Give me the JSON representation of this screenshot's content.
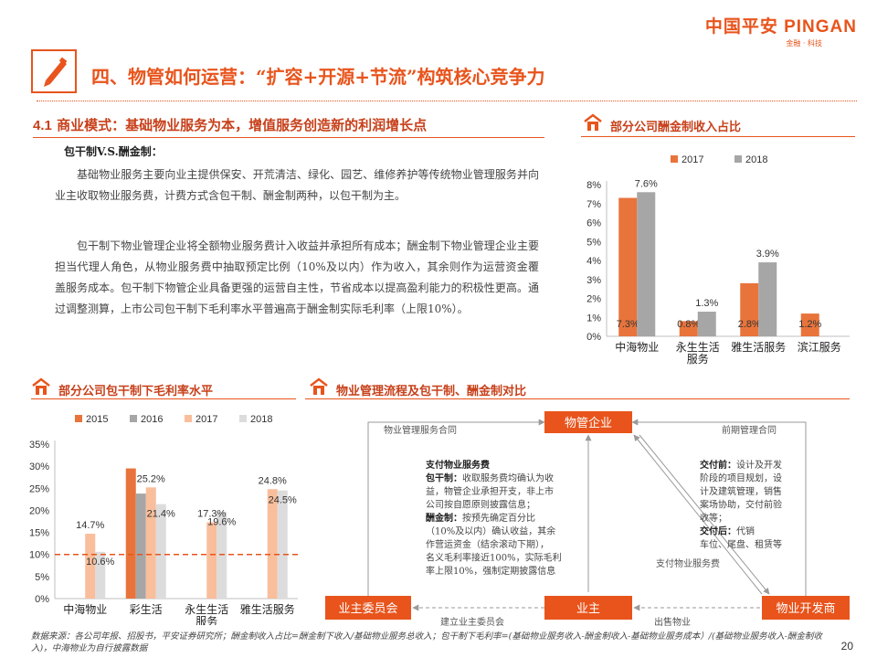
{
  "brand": {
    "name": "中国平安 PINGAN",
    "tagline": "金融 · 科技"
  },
  "page_title": "四、物管如何运营：“扩容+开源+节流”构筑核心竞争力",
  "section": {
    "number": "4.1",
    "title": "商业模式：基础物业服务为本，增值服务创造新的利润增长点"
  },
  "subheading": "包干制V.S.酬金制：",
  "paragraphs": [
    "基础物业服务主要向业主提供保安、开荒清洁、绿化、园艺、维修养护等传统物业管理服务并向业主收取物业服务费，计费方式含包干制、酬金制两种，以包干制为主。",
    "包干制下物业管理企业将全额物业服务费计入收益并承担所有成本；酬金制下物业管理企业主要担当代理人角色，从物业服务费中抽取预定比例（10%及以内）作为收入，其余则作为运营资金覆盖服务成本。包干制下物管企业具备更强的运营自主性，节省成本以提高盈利能力的积极性更高。通过调整测算，上市公司包干制下毛利率水平普遍高于酬金制实际毛利率（上限10%）。"
  ],
  "panels": {
    "chart1_title": "部分公司酬金制收入占比",
    "chart2_title": "部分公司包干制下毛利率水平",
    "flow_title": "物业管理流程及包干制、酬金制对比"
  },
  "colors": {
    "accent": "#e8541c",
    "s2015": "#e8743b",
    "s2016": "#a6a6a6",
    "s2017": "#f9be9b",
    "s2018": "#dcdcdc"
  },
  "chart_data": [
    {
      "type": "bar",
      "categories": [
        "中海物业",
        "永生生活服务",
        "雅生活服务",
        "滨江服务"
      ],
      "series": [
        {
          "name": "2017",
          "values": [
            7.3,
            0.8,
            2.8,
            1.2
          ]
        },
        {
          "name": "2018",
          "values": [
            7.6,
            1.3,
            3.9,
            null
          ]
        }
      ],
      "data_labels": {
        "2017": [
          "7.3%",
          "0.8%",
          "2.8%",
          "1.2%"
        ],
        "2018": [
          "7.6%",
          "1.3%",
          "3.9%",
          ""
        ]
      },
      "category_lines": [
        [
          "中海物业"
        ],
        [
          "永生生活",
          "服务"
        ],
        [
          "雅生活服务"
        ],
        [
          "滨江服务"
        ]
      ],
      "ylim": [
        0,
        8
      ],
      "yticks": [
        "0%",
        "1%",
        "2%",
        "3%",
        "4%",
        "5%",
        "6%",
        "7%",
        "8%"
      ],
      "legend": "top",
      "grid": false
    },
    {
      "type": "bar",
      "categories": [
        "中海物业",
        "彩生活",
        "永生生活服务",
        "雅生活服务"
      ],
      "series": [
        {
          "name": "2015",
          "values": [
            null,
            29.5,
            null,
            null
          ]
        },
        {
          "name": "2016",
          "values": [
            null,
            23.8,
            null,
            null
          ]
        },
        {
          "name": "2017",
          "values": [
            14.7,
            25.2,
            17.3,
            24.8
          ]
        },
        {
          "name": "2018",
          "values": [
            10.6,
            21.4,
            19.6,
            24.5
          ]
        }
      ],
      "data_labels": [
        {
          "text": "14.7%",
          "cat": 0,
          "s": 2
        },
        {
          "text": "10.6%",
          "cat": 0,
          "s": 3
        },
        {
          "text": "25.2%",
          "cat": 1,
          "s": 2
        },
        {
          "text": "21.4%",
          "cat": 1,
          "s": 3
        },
        {
          "text": "17.3%",
          "cat": 2,
          "s": 2
        },
        {
          "text": "19.6%",
          "cat": 2,
          "s": 3
        },
        {
          "text": "24.8%",
          "cat": 3,
          "s": 2
        },
        {
          "text": "24.5%",
          "cat": 3,
          "s": 3
        }
      ],
      "category_lines": [
        [
          "中海物业"
        ],
        [
          "彩生活"
        ],
        [
          "永生生活",
          "服务"
        ],
        [
          "雅生活服务"
        ]
      ],
      "ylim": [
        0,
        35
      ],
      "yticks": [
        "0%",
        "5%",
        "10%",
        "15%",
        "20%",
        "25%",
        "30%",
        "35%"
      ],
      "reference_line": 10,
      "legend": "top",
      "grid": false
    }
  ],
  "flow": {
    "nodes": {
      "company": "物管企业",
      "committee": "业主委员会",
      "owner": "业主",
      "developer": "物业开发商"
    },
    "edges": {
      "contract": "物业管理服务合同",
      "early_contract": "前期管理合同",
      "pay_fee": "支付物业服务费",
      "build_committee": "建立业主委员会",
      "sell": "出售物业"
    },
    "note_left": {
      "title": "支付物业服务费",
      "lines": [
        {
          "bold": "包干制：",
          "text": "收取服务费均确认为收"
        },
        {
          "bold": "",
          "text": "益，物管企业承担开支，非上市"
        },
        {
          "bold": "",
          "text": "公司按自愿原则披露信息；"
        },
        {
          "bold": "酬金制：",
          "text": "按预先确定百分比"
        },
        {
          "bold": "",
          "text": "（10%及以内）确认收益，其余"
        },
        {
          "bold": "",
          "text": "作营运资金（结余滚动下期），"
        },
        {
          "bold": "",
          "text": "名义毛利率接近100%，实际毛利"
        },
        {
          "bold": "",
          "text": "率上限10%，强制定期披露信息"
        }
      ]
    },
    "note_right": {
      "lines": [
        {
          "bold": "交付前：",
          "text": "设计及开发"
        },
        {
          "bold": "",
          "text": "阶段的项目规划，设"
        },
        {
          "bold": "",
          "text": "计及建筑管理，销售"
        },
        {
          "bold": "",
          "text": "案场协助，交付前验"
        },
        {
          "bold": "",
          "text": "收等；"
        },
        {
          "bold": "交付后：",
          "text": "代销"
        },
        {
          "bold": "",
          "text": "车位、尾盘、租赁等"
        }
      ]
    }
  },
  "footer": "数据来源：各公司年报、招股书，平安证券研究所；酬金制收入占比=酬金制下收入/基础物业服务总收入；包干制下毛利率=(基础物业服务收入-酬金制收入-基础物业服务成本）/(基础物业服务收入-酬金制收入)，中海物业为自行披露数据",
  "page_number": "20"
}
